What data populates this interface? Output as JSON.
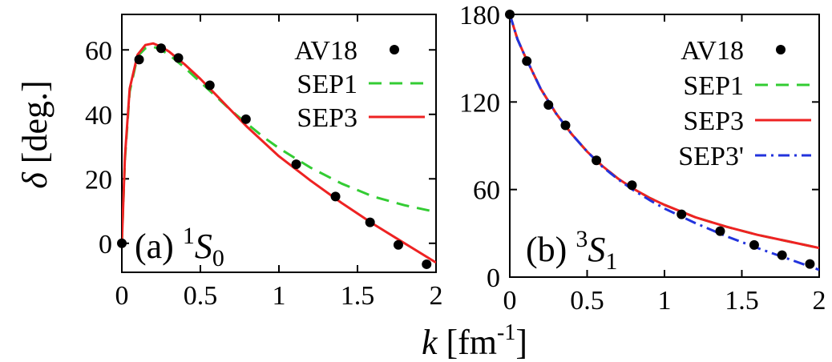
{
  "chart_data": [
    {
      "type": "line",
      "panel": "(a) ¹S₀",
      "panel_parts": {
        "tag": "(a)",
        "sup": "1",
        "main": "S",
        "sub": "0"
      },
      "xlabel": "",
      "ylabel": "δ [deg.]",
      "xlim": [
        0,
        2
      ],
      "ylim": [
        -9,
        71
      ],
      "xticks": [
        "0",
        "0.5",
        "1",
        "1.5",
        "2"
      ],
      "yticks": [
        "0",
        "20",
        "40",
        "60"
      ],
      "legend_position": "top-right",
      "series": [
        {
          "name": "AV18",
          "style": "points",
          "color": "#000000",
          "x": [
            0.0,
            0.11,
            0.25,
            0.36,
            0.56,
            0.79,
            1.11,
            1.36,
            1.58,
            1.76,
            1.94
          ],
          "y": [
            0.0,
            57.0,
            60.5,
            57.5,
            49.0,
            38.5,
            24.5,
            14.5,
            6.5,
            -0.5,
            -6.5
          ]
        },
        {
          "name": "SEP1",
          "style": "dashed",
          "color": "#33cc33",
          "x": [
            0.0,
            0.02,
            0.05,
            0.1,
            0.15,
            0.2,
            0.25,
            0.3,
            0.4,
            0.5,
            0.6,
            0.7,
            0.8,
            0.9,
            1.0,
            1.2,
            1.4,
            1.6,
            1.8,
            2.0
          ],
          "y": [
            0.0,
            26.0,
            47.0,
            58.0,
            60.5,
            61.0,
            60.0,
            58.5,
            54.5,
            50.0,
            45.5,
            41.0,
            37.0,
            33.0,
            29.5,
            23.5,
            18.5,
            14.5,
            11.8,
            9.7
          ]
        },
        {
          "name": "SEP3",
          "style": "solid",
          "color": "#ee2222",
          "x": [
            0.0,
            0.02,
            0.05,
            0.1,
            0.15,
            0.2,
            0.25,
            0.3,
            0.4,
            0.5,
            0.6,
            0.7,
            0.8,
            0.9,
            1.0,
            1.2,
            1.4,
            1.6,
            1.8,
            2.0
          ],
          "y": [
            0.0,
            27.0,
            48.0,
            58.5,
            61.5,
            62.0,
            61.0,
            59.5,
            55.5,
            51.0,
            46.0,
            41.0,
            36.0,
            31.5,
            27.0,
            19.5,
            12.5,
            6.0,
            0.0,
            -6.0
          ]
        }
      ]
    },
    {
      "type": "line",
      "panel": "(b) ³S₁",
      "panel_parts": {
        "tag": "(b)",
        "sup": "3",
        "main": "S",
        "sub": "1"
      },
      "xlabel": "k [fm⁻¹]",
      "xlabel_parts": {
        "main": "k",
        "open": " [fm",
        "sup": "-1",
        "close": "]"
      },
      "ylabel": "",
      "xlim": [
        0,
        2
      ],
      "ylim": [
        0,
        180
      ],
      "xticks": [
        "0",
        "0.5",
        "1",
        "1.5",
        "2"
      ],
      "yticks": [
        "0",
        "60",
        "120",
        "180"
      ],
      "legend_position": "top-right",
      "series": [
        {
          "name": "AV18",
          "style": "points",
          "color": "#000000",
          "x": [
            0.0,
            0.11,
            0.25,
            0.36,
            0.56,
            0.79,
            1.11,
            1.36,
            1.58,
            1.76,
            1.94
          ],
          "y": [
            180.0,
            148.0,
            118.0,
            104.0,
            80.0,
            63.0,
            43.0,
            31.5,
            22.0,
            15.0,
            9.0
          ]
        },
        {
          "name": "SEP1",
          "style": "dashed",
          "color": "#33cc33",
          "x": [
            0.0,
            0.05,
            0.1,
            0.2,
            0.3,
            0.4,
            0.5,
            0.6,
            0.7,
            0.8,
            0.9,
            1.0,
            1.2,
            1.4,
            1.6,
            1.8,
            2.0
          ],
          "y": [
            180.0,
            163.0,
            151.0,
            129.0,
            112.0,
            98.0,
            86.0,
            76.0,
            67.5,
            60.5,
            54.5,
            49.5,
            41.0,
            34.5,
            29.0,
            24.5,
            20.0
          ]
        },
        {
          "name": "SEP3",
          "style": "solid",
          "color": "#ee2222",
          "x": [
            0.0,
            0.05,
            0.1,
            0.2,
            0.3,
            0.4,
            0.5,
            0.6,
            0.7,
            0.8,
            0.9,
            1.0,
            1.2,
            1.4,
            1.6,
            1.8,
            2.0
          ],
          "y": [
            180.0,
            163.0,
            151.0,
            129.0,
            112.0,
            98.0,
            86.0,
            76.0,
            67.5,
            60.5,
            54.5,
            49.5,
            41.0,
            34.5,
            29.0,
            24.5,
            20.0
          ]
        },
        {
          "name": "SEP3'",
          "style": "dashdot",
          "color": "#2233dd",
          "x": [
            0.0,
            0.05,
            0.1,
            0.2,
            0.3,
            0.4,
            0.5,
            0.6,
            0.7,
            0.8,
            0.9,
            1.0,
            1.2,
            1.4,
            1.6,
            1.8,
            2.0
          ],
          "y": [
            180.0,
            163.0,
            151.0,
            129.0,
            112.0,
            98.0,
            86.0,
            75.5,
            67.0,
            59.5,
            53.0,
            47.0,
            37.0,
            28.0,
            20.0,
            12.5,
            5.0
          ]
        }
      ]
    }
  ]
}
